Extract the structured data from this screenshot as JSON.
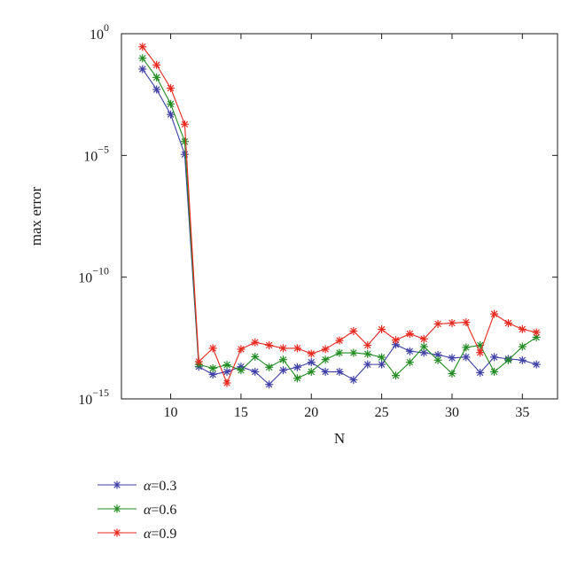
{
  "chart_data": {
    "type": "line",
    "xlabel": "N",
    "ylabel": "max error",
    "xlim": [
      6.5,
      37.5
    ],
    "ylim": [
      1e-15,
      1
    ],
    "yscale": "log",
    "xticks": [
      "10",
      "15",
      "20",
      "25",
      "30",
      "35"
    ],
    "xtick_values": [
      10,
      15,
      20,
      25,
      30,
      35
    ],
    "yticks": [
      {
        "base": "10",
        "exp": "0",
        "value": 1
      },
      {
        "base": "10",
        "exp": "−5",
        "value": 1e-05
      },
      {
        "base": "10",
        "exp": "−10",
        "value": 1e-10
      },
      {
        "base": "10",
        "exp": "−15",
        "value": 1e-15
      }
    ],
    "grid": false,
    "legend_position": "bottom-left-outside",
    "x": [
      8,
      9,
      10,
      11,
      12,
      13,
      14,
      15,
      16,
      17,
      18,
      19,
      20,
      21,
      22,
      23,
      24,
      25,
      26,
      27,
      28,
      29,
      30,
      31,
      32,
      33,
      34,
      35,
      36
    ],
    "series": [
      {
        "name": "α=0.3",
        "color": "#3f3fa6",
        "values": [
          0.035,
          0.0051,
          0.00048,
          1.1e-05,
          2.1e-14,
          1e-14,
          1.3e-14,
          2.1e-14,
          1.3e-14,
          3.9e-15,
          1.5e-14,
          2e-14,
          3.2e-14,
          1.3e-14,
          1.3e-14,
          6.1e-15,
          2.6e-14,
          2.6e-14,
          1.7e-13,
          9.1e-14,
          7.9e-14,
          6.4e-14,
          4.8e-14,
          5.2e-14,
          1.2e-14,
          5.2e-14,
          4.4e-14,
          3.9e-14,
          2.6e-14
        ]
      },
      {
        "name": "α=0.6",
        "color": "#238b23",
        "values": [
          0.098,
          0.016,
          0.0013,
          3.7e-05,
          2.6e-14,
          1.8e-14,
          2.5e-14,
          1.5e-14,
          5.4e-14,
          2e-14,
          4.1e-14,
          7e-15,
          1.3e-14,
          4.1e-14,
          7.8e-14,
          7.8e-14,
          7e-14,
          5.1e-14,
          9.1e-15,
          3.2e-14,
          1.4e-13,
          3.9e-14,
          1.1e-14,
          1.3e-13,
          1.6e-13,
          1.3e-14,
          3.9e-14,
          1.4e-13,
          3.4e-13
        ]
      },
      {
        "name": "α=0.9",
        "color": "#e8291f",
        "values": [
          0.29,
          0.052,
          0.0058,
          0.00019,
          3.4e-14,
          1.2e-13,
          4.5e-15,
          1.1e-13,
          2.1e-13,
          1.6e-13,
          1.2e-13,
          1.2e-13,
          7.2e-14,
          1.1e-13,
          2.5e-13,
          6.1e-13,
          1.6e-13,
          7.2e-13,
          2.6e-13,
          4.7e-13,
          2.9e-13,
          1.2e-12,
          1.3e-12,
          1.4e-12,
          8e-14,
          3.1e-12,
          1.3e-12,
          7.3e-13,
          5.4e-13
        ]
      }
    ]
  }
}
